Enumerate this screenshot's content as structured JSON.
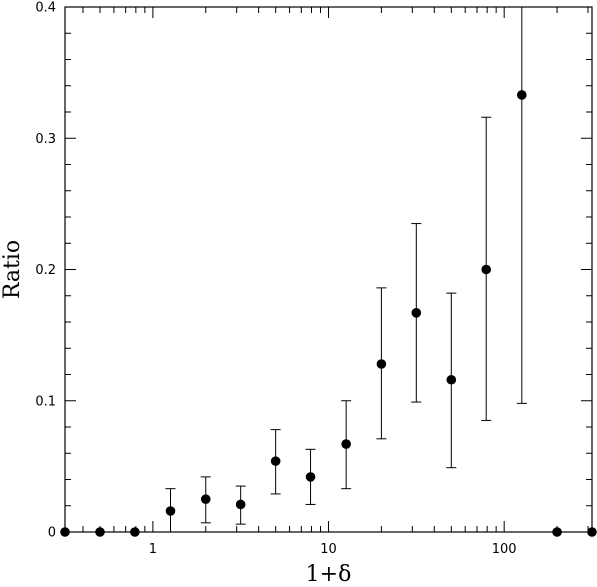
{
  "chart_data": {
    "type": "scatter",
    "title": "",
    "xlabel": "1+δ",
    "ylabel": "Ratio",
    "xscale": "log",
    "xlim": [
      0.316,
      316.2
    ],
    "ylim": [
      0,
      0.4
    ],
    "grid": false,
    "legend": "none",
    "x_tick_labels": [
      {
        "value": 1,
        "label": "1"
      },
      {
        "value": 10,
        "label": "10"
      },
      {
        "value": 100,
        "label": "100"
      }
    ],
    "y_tick_labels": [
      {
        "value": 0,
        "label": "0"
      },
      {
        "value": 0.1,
        "label": "0.1"
      },
      {
        "value": 0.2,
        "label": "0.2"
      },
      {
        "value": 0.3,
        "label": "0.3"
      },
      {
        "value": 0.4,
        "label": "0.4"
      }
    ],
    "series": [
      {
        "marker": "filled-circle",
        "color": "#000000",
        "points": [
          {
            "x": 0.316,
            "y": 0
          },
          {
            "x": 0.5,
            "y": 0
          },
          {
            "x": 0.79,
            "y": 0
          },
          {
            "x": 1.26,
            "y": 0.016,
            "err_low": 0,
            "err_high": 0.033
          },
          {
            "x": 2.0,
            "y": 0.025,
            "err_low": 0.007,
            "err_high": 0.042
          },
          {
            "x": 3.16,
            "y": 0.021,
            "err_low": 0.006,
            "err_high": 0.035
          },
          {
            "x": 5.0,
            "y": 0.054,
            "err_low": 0.029,
            "err_high": 0.078
          },
          {
            "x": 7.9,
            "y": 0.042,
            "err_low": 0.021,
            "err_high": 0.063
          },
          {
            "x": 12.6,
            "y": 0.067,
            "err_low": 0.033,
            "err_high": 0.1
          },
          {
            "x": 20.0,
            "y": 0.128,
            "err_low": 0.071,
            "err_high": 0.186
          },
          {
            "x": 31.6,
            "y": 0.167,
            "err_low": 0.099,
            "err_high": 0.235
          },
          {
            "x": 50.0,
            "y": 0.116,
            "err_low": 0.049,
            "err_high": 0.182
          },
          {
            "x": 79.0,
            "y": 0.2,
            "err_low": 0.085,
            "err_high": 0.316
          },
          {
            "x": 126.0,
            "y": 0.333,
            "err_low": 0.098,
            "err_high": 0.4
          },
          {
            "x": 200.0,
            "y": 0
          },
          {
            "x": 316.2,
            "y": 0
          }
        ]
      }
    ]
  }
}
